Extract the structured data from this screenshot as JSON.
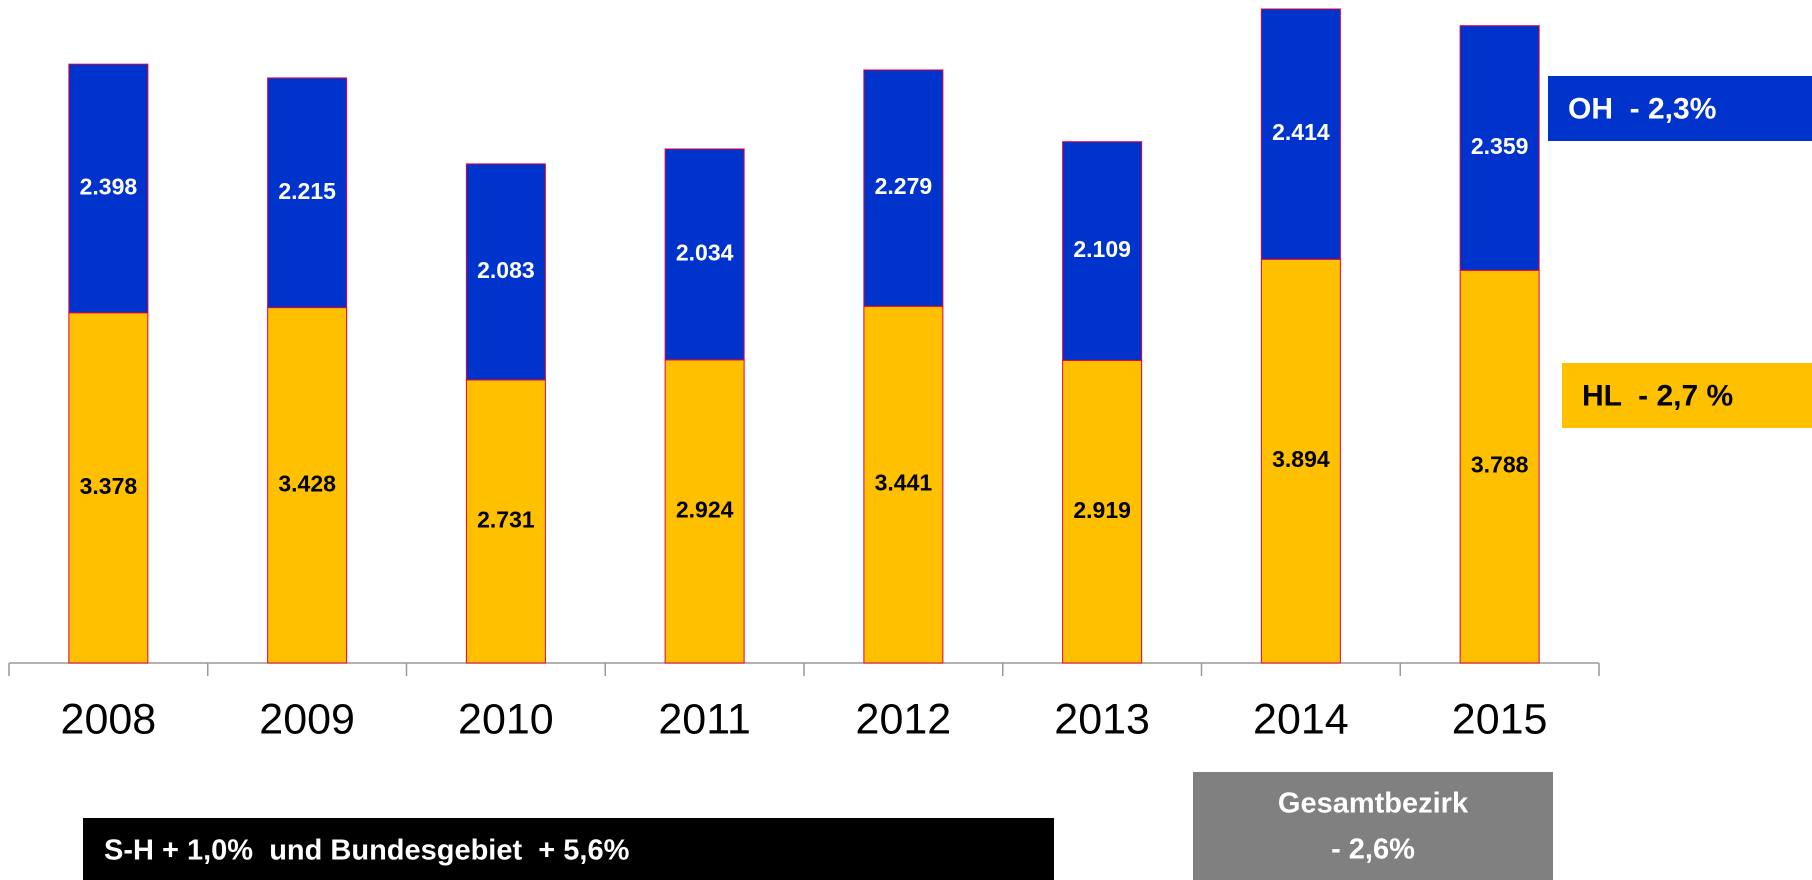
{
  "chart_data": {
    "type": "stacked_bar",
    "categories": [
      "2008",
      "2009",
      "2010",
      "2011",
      "2012",
      "2013",
      "2014",
      "2015"
    ],
    "series": [
      {
        "name": "HL  - 2,7 %",
        "color": "#ffc000",
        "values": [
          3378,
          3428,
          2731,
          2924,
          3441,
          2919,
          3894,
          3788
        ],
        "value_labels": [
          "3.378",
          "3.428",
          "2.731",
          "2.924",
          "3.441",
          "2.919",
          "3.894",
          "3.788"
        ]
      },
      {
        "name": "OH  - 2,3%",
        "color": "#0033cc",
        "values": [
          2398,
          2215,
          2083,
          2034,
          2279,
          2109,
          2414,
          2359
        ],
        "value_labels": [
          "2.398",
          "2.215",
          "2.083",
          "2.034",
          "2.279",
          "2.109",
          "2.414",
          "2.359"
        ]
      }
    ],
    "annotations": [
      "Gesamtbezirk",
      "- 2,6%",
      "S-H + 1,0%  und Bundesgebiet  + 5,6%"
    ]
  }
}
